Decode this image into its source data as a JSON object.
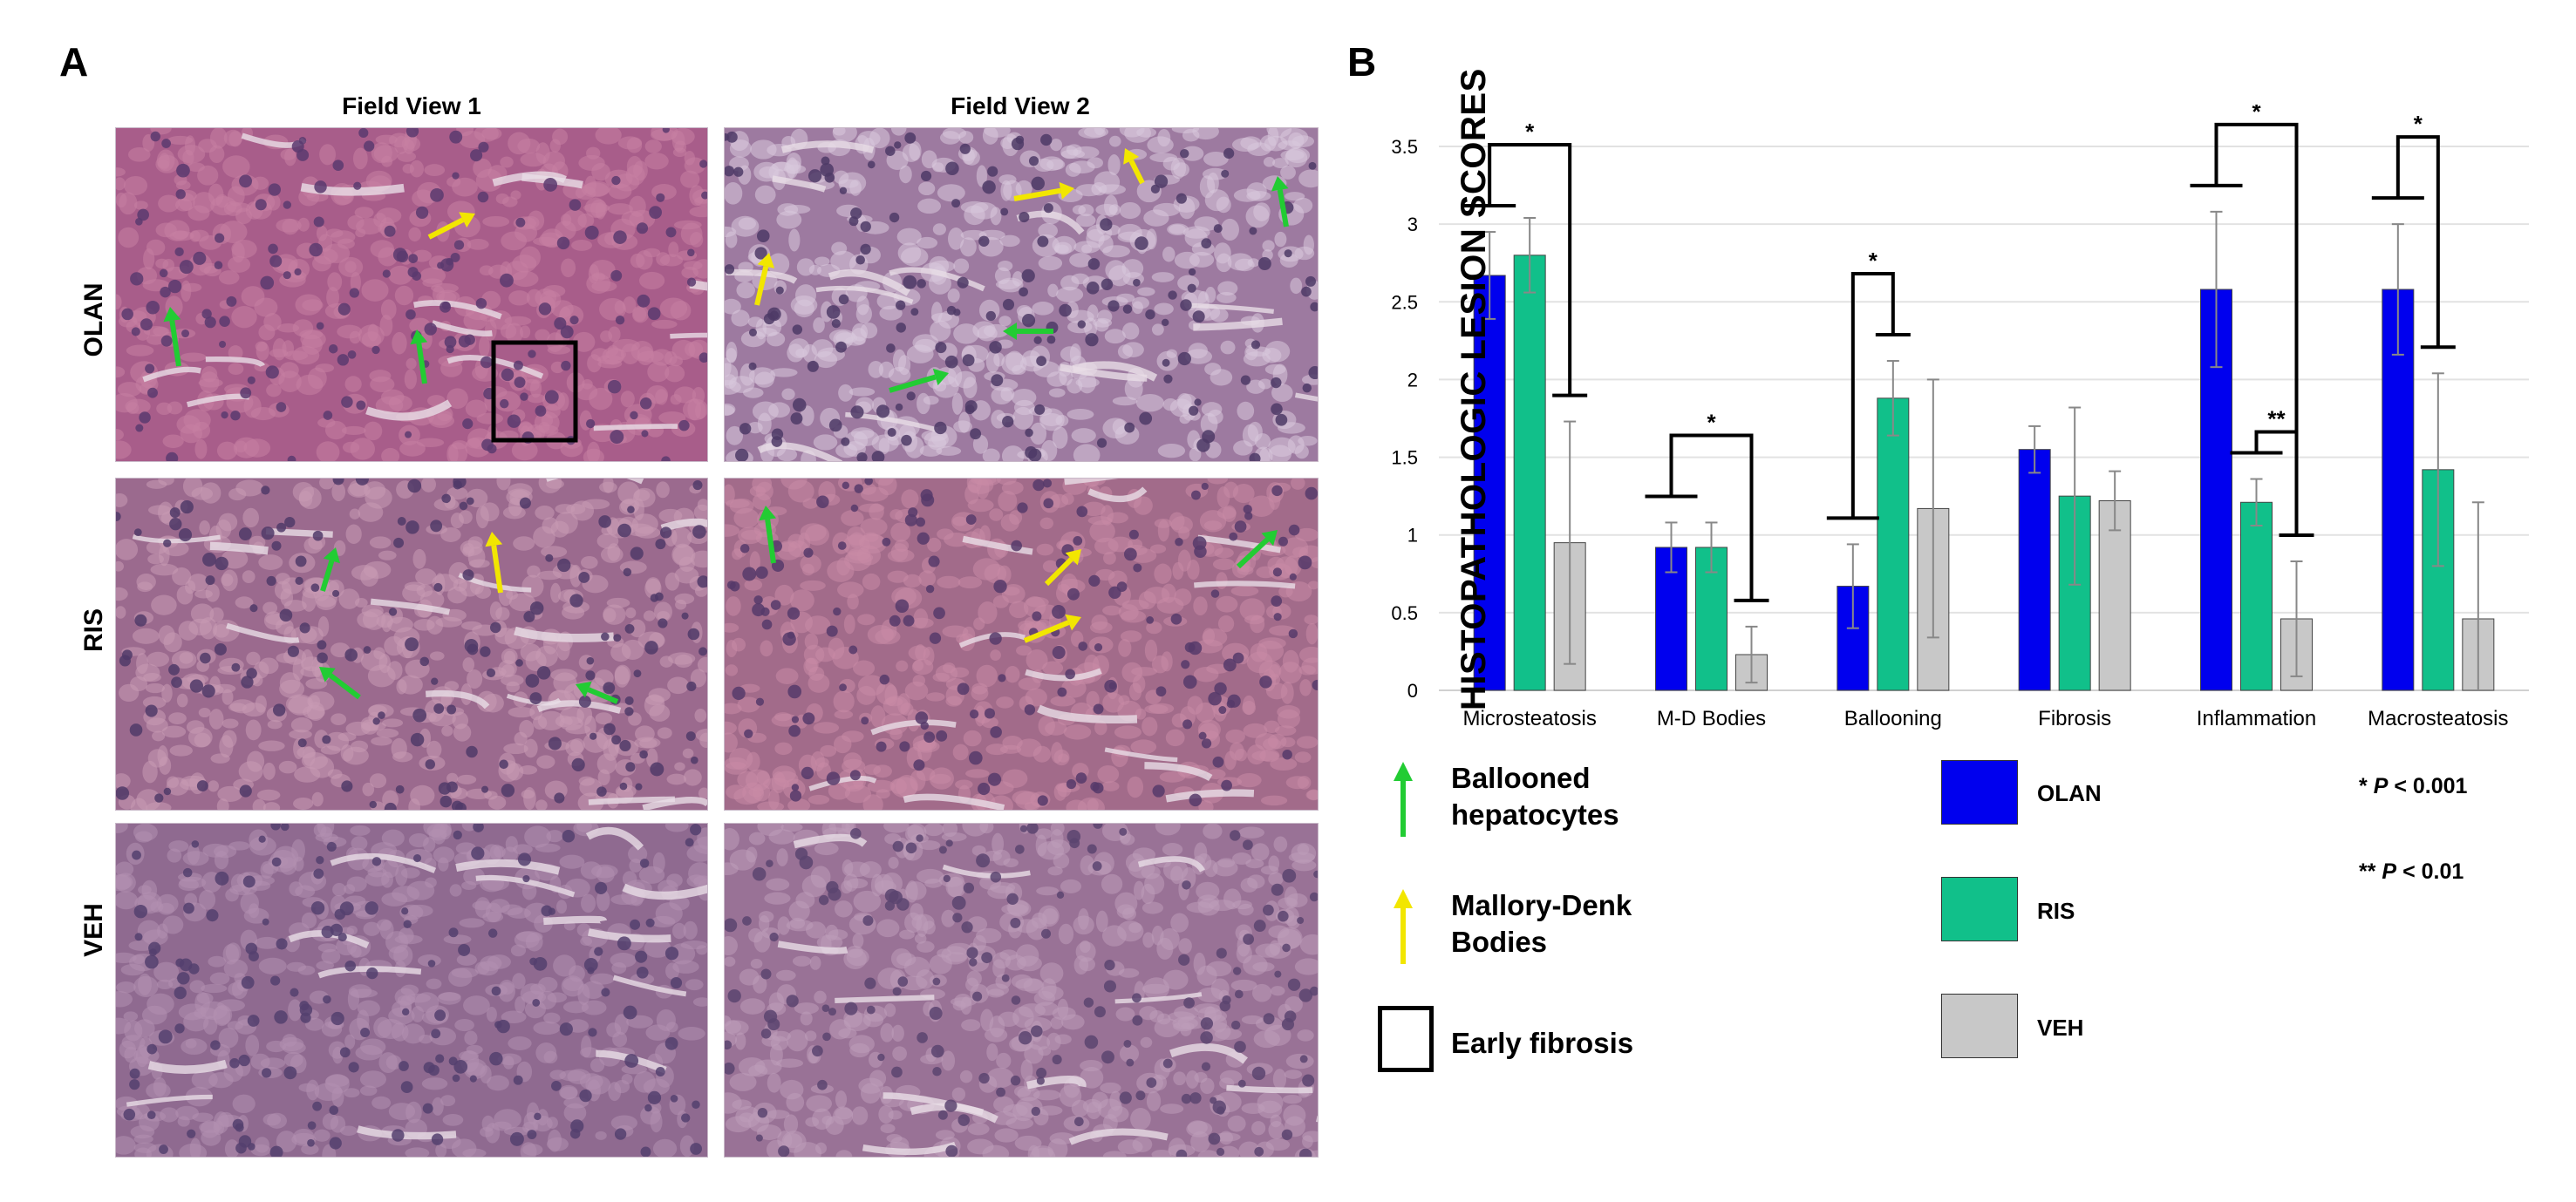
{
  "panel_labels": {
    "a": "A",
    "b": "B"
  },
  "panel_a": {
    "columns": [
      "Field View 1",
      "Field View 2"
    ],
    "rows": [
      "OLAN",
      "RIS",
      "VEH"
    ],
    "images": [
      {
        "row": "OLAN",
        "col": "Field View 1",
        "tint": "#a85d8a",
        "cell": "#c77fa3",
        "nuclei": "#5b3a6e"
      },
      {
        "row": "OLAN",
        "col": "Field View 2",
        "tint": "#9d7aa0",
        "cell": "#d8c8dc",
        "nuclei": "#4e3a66"
      },
      {
        "row": "RIS",
        "col": "Field View 1",
        "tint": "#9b6a8e",
        "cell": "#c99bb4",
        "nuclei": "#503a68"
      },
      {
        "row": "RIS",
        "col": "Field View 2",
        "tint": "#a26b8a",
        "cell": "#c98aa6",
        "nuclei": "#563a6a"
      },
      {
        "row": "VEH",
        "col": "Field View 1",
        "tint": "#8f6a90",
        "cell": "#b28fb0",
        "nuclei": "#54406e"
      },
      {
        "row": "VEH",
        "col": "Field View 2",
        "tint": "#997296",
        "cell": "#bd9cba",
        "nuclei": "#5a4470"
      }
    ]
  },
  "legend_a": {
    "items": [
      {
        "label": "Ballooned hepatocytes",
        "symbol": "green-arrow",
        "color": "#22cc33"
      },
      {
        "label": "Mallory-Denk Bodies",
        "symbol": "yellow-arrow",
        "color": "#f2e600"
      },
      {
        "label": "Early fibrosis",
        "symbol": "box",
        "color": "#000000"
      }
    ]
  },
  "chart_data": {
    "type": "bar",
    "title": "",
    "xlabel": "",
    "ylabel": "HISTOPATHOLOGIC LESION SCORES",
    "ylim": [
      0,
      3.5
    ],
    "yticks": [
      "0",
      "0.5",
      "1",
      "1.5",
      "2",
      "2.5",
      "3",
      "3.5"
    ],
    "grid": true,
    "categories": [
      "Microsteatosis",
      "M-D Bodies",
      "Ballooning",
      "Fibrosis",
      "Inflammation",
      "Macrosteatosis"
    ],
    "series": [
      {
        "name": "OLAN",
        "color": "#0000ee",
        "values": [
          2.67,
          0.92,
          0.67,
          1.55,
          2.58,
          2.58
        ],
        "err": [
          0.28,
          0.16,
          0.27,
          0.15,
          0.5,
          0.42
        ]
      },
      {
        "name": "RIS",
        "color": "#11c08a",
        "values": [
          2.8,
          0.92,
          1.88,
          1.25,
          1.21,
          1.42
        ],
        "err": [
          0.24,
          0.16,
          0.24,
          0.57,
          0.15,
          0.62
        ]
      },
      {
        "name": "VEH",
        "color": "#c8c8c8",
        "values": [
          0.95,
          0.23,
          1.17,
          1.22,
          0.46,
          0.46
        ],
        "err": [
          0.78,
          0.18,
          0.83,
          0.19,
          0.37,
          0.75
        ]
      }
    ],
    "significance": [
      {
        "category": "Microsteatosis",
        "between": [
          "OLAN",
          "VEH"
        ],
        "label": "*"
      },
      {
        "category": "M-D Bodies",
        "between": [
          "OLAN",
          "VEH"
        ],
        "label": "*"
      },
      {
        "category": "Ballooning",
        "between": [
          "OLAN",
          "RIS"
        ],
        "label": "*"
      },
      {
        "category": "Inflammation",
        "between": [
          "OLAN",
          "VEH"
        ],
        "label": "*"
      },
      {
        "category": "Inflammation",
        "between": [
          "RIS",
          "VEH"
        ],
        "label": "**"
      },
      {
        "category": "Macrosteatosis",
        "between": [
          "OLAN",
          "RIS"
        ],
        "label": "*"
      }
    ],
    "legend_placement": "bottom",
    "pvalues": [
      {
        "stars": "*",
        "text": "< 0.001"
      },
      {
        "stars": "**",
        "text": "< 0.01"
      }
    ],
    "p_letter": "P"
  }
}
